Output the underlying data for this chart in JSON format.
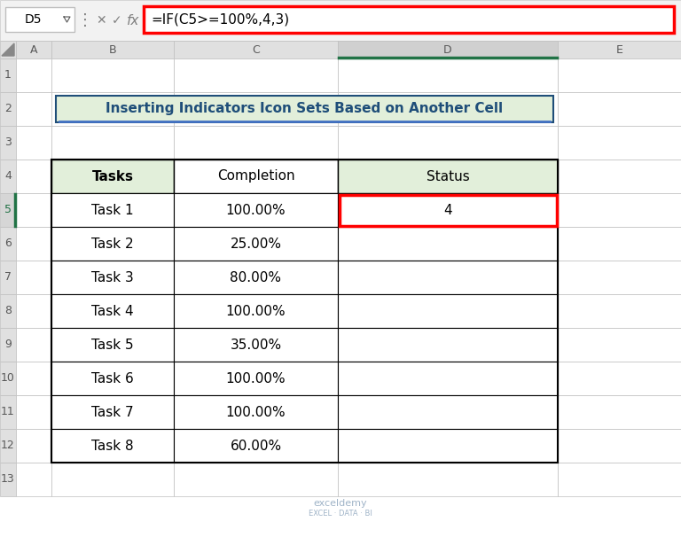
{
  "title": "Inserting Indicators Icon Sets Based on Another Cell",
  "formula_bar_cell": "D5",
  "formula_bar_formula": "=IF(C5>=100%,4,3)",
  "table_headers": [
    "Tasks",
    "Completion",
    "Status"
  ],
  "tasks": [
    "Task 1",
    "Task 2",
    "Task 3",
    "Task 4",
    "Task 5",
    "Task 6",
    "Task 7",
    "Task 8"
  ],
  "completion": [
    "100.00%",
    "25.00%",
    "80.00%",
    "100.00%",
    "35.00%",
    "100.00%",
    "100.00%",
    "60.00%"
  ],
  "status_row0": "4",
  "bg_color": "#FFFFFF",
  "toolbar_bg": "#F2F2F2",
  "header_bg": "#E0E0E0",
  "col_D_header_bg": "#D0D0D0",
  "title_bg": "#E2EFDA",
  "title_text_color": "#1F4E79",
  "table_header_bg": "#E2EFDA",
  "grid_color": "#BFBFBF",
  "formula_box_border": "#FF0000",
  "selected_cell_border": "#FF0000",
  "row5_header_bg": "#D6D6D6",
  "row_num_color": "#595959",
  "col_header_color": "#595959",
  "green_accent": "#217346",
  "formula_bar_bg": "#FFFFFF",
  "watermark_color": "#A0B4C8",
  "toolbar_border": "#C8C8C8",
  "name_box_bg": "#FFFFFF",
  "separator_color": "#C8C8C8"
}
